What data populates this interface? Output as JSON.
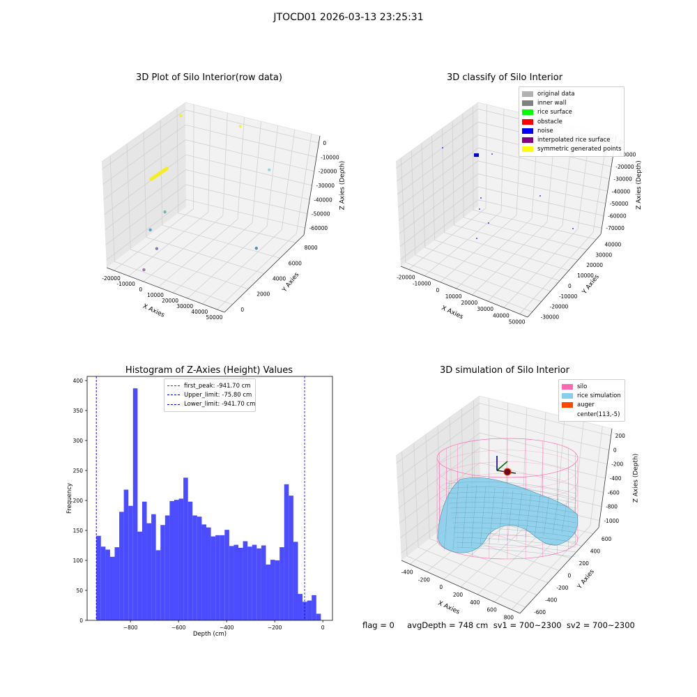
{
  "suptitle": "JTOCD01 2026-03-13 23:25:31",
  "colors": {
    "pane": "#f2f2f2",
    "pane_side": "#e6e6e6",
    "grid": "#d0d0d0",
    "hist_bar": "#4b4bff",
    "first_peak": "#ff0000",
    "limit": "#0000ff",
    "silo": "#ff69b4",
    "rice": "#87ceeb",
    "auger": "#ff4500"
  },
  "panel_tl": {
    "title": "3D Plot of Silo Interior(row data)",
    "xlabel": "X Axies",
    "ylabel": "Y Axies",
    "zlabel": "Z Axies (Depth)",
    "xticks": [
      "-20000",
      "-10000",
      "0",
      "10000",
      "20000",
      "30000",
      "40000",
      "50000"
    ],
    "yticks": [
      "0",
      "2000",
      "4000",
      "6000",
      "8000"
    ],
    "zticks": [
      "0",
      "-10000",
      "-20000",
      "-30000",
      "-40000",
      "-50000",
      "-60000"
    ]
  },
  "panel_tr": {
    "title": "3D classify of Silo Interior",
    "xlabel": "X Axies",
    "ylabel": "Y Axies",
    "zlabel": "Z Axies (Depth)",
    "xticks": [
      "-20000",
      "-10000",
      "0",
      "10000",
      "20000",
      "30000",
      "40000",
      "50000"
    ],
    "yticks": [
      "-30000",
      "-20000",
      "-10000",
      "0",
      "10000",
      "20000",
      "30000",
      "40000"
    ],
    "zticks": [
      "0",
      "-10000",
      "-20000",
      "-30000",
      "-40000",
      "-50000",
      "-60000",
      "-70000"
    ],
    "legend": [
      {
        "label": "original data",
        "color": "#b0b0b0"
      },
      {
        "label": "inner wall",
        "color": "#808080"
      },
      {
        "label": "rice surface",
        "color": "#00ff00"
      },
      {
        "label": "obstacle",
        "color": "#ff0000"
      },
      {
        "label": "noise",
        "color": "#0000ff"
      },
      {
        "label": "interpolated rice surface",
        "color": "#800080"
      },
      {
        "label": "symmetric generated points",
        "color": "#ffff00"
      }
    ]
  },
  "panel_br": {
    "title": "3D simulation of Silo Interior",
    "xlabel": "X Axies",
    "ylabel": "Y Axies",
    "zlabel": "Z Axies (Depth)",
    "xticks": [
      "-400",
      "-200",
      "0",
      "200",
      "400",
      "600",
      "800"
    ],
    "yticks": [
      "-600",
      "-400",
      "-200",
      "0",
      "200",
      "400",
      "600"
    ],
    "zticks": [
      "200",
      "0",
      "-200",
      "-400",
      "-600",
      "-800",
      "-1000"
    ],
    "legend": [
      {
        "label": "silo",
        "color": "#ff69b4"
      },
      {
        "label": "rice simulation",
        "color": "#87ceeb"
      },
      {
        "label": "auger",
        "color": "#ff4500"
      },
      {
        "label": "center(113,-5)",
        "color": ""
      }
    ]
  },
  "footer": "flag = 0     avgDepth = 748 cm  sv1 = 700~2300  sv2 = 700~2300",
  "chart_data": [
    {
      "type": "scatter",
      "title": "3D Plot of Silo Interior(row data)",
      "xlabel": "X Axies",
      "ylabel": "Y Axies",
      "zlabel": "Z Axies (Depth)",
      "xlim": [
        -25000,
        55000
      ],
      "ylim": [
        -1000,
        9000
      ],
      "zlim": [
        -70000,
        2000
      ],
      "points_note": "",
      "clusters": [
        {
          "x": -20000,
          "y": 8000,
          "z": -2000,
          "color": "#f0f020"
        },
        {
          "x": 15000,
          "y": 9000,
          "z": 0,
          "color": "#f0f020"
        },
        {
          "x": 45000,
          "y": 7000,
          "z": -10000,
          "color": "#88cccc"
        },
        {
          "x": 0,
          "y": 2000,
          "z": -35000,
          "color": "#5aaaaa"
        },
        {
          "x": -5000,
          "y": 1000,
          "z": -45000,
          "color": "#4090b0"
        },
        {
          "x": 0,
          "y": 800,
          "z": -55000,
          "color": "#6060b0"
        },
        {
          "x": 45000,
          "y": 5000,
          "z": -55000,
          "color": "#2a7aa0"
        },
        {
          "x": -5000,
          "y": 0,
          "z": -68000,
          "color": "#9050b0"
        }
      ]
    },
    {
      "type": "scatter",
      "title": "3D classify of Silo Interior",
      "xlim": [
        -25000,
        55000
      ],
      "ylim": [
        -35000,
        45000
      ],
      "zlim": [
        -75000,
        2000
      ]
    },
    {
      "type": "bar",
      "title": "Histogram of Z-Axies (Height) Values",
      "xlabel": "Depth (cm)",
      "ylabel": "Frequency",
      "xlim": [
        -980,
        40
      ],
      "ylim": [
        0,
        407
      ],
      "xticks": [
        -800,
        -600,
        -400,
        -200,
        0
      ],
      "yticks": [
        0,
        50,
        100,
        150,
        200,
        250,
        300,
        350,
        400
      ],
      "bin_start": -941.7,
      "bin_width": 19.05,
      "values": [
        141,
        123,
        118,
        106,
        122,
        181,
        218,
        191,
        387,
        148,
        198,
        162,
        177,
        117,
        159,
        175,
        199,
        201,
        203,
        238,
        198,
        175,
        173,
        160,
        155,
        140,
        142,
        142,
        151,
        124,
        126,
        121,
        132,
        123,
        126,
        120,
        125,
        93,
        101,
        100,
        122,
        227,
        208,
        131,
        44,
        31,
        33,
        42,
        11
      ],
      "lines": [
        {
          "label": "first_peak: -941.70 cm",
          "x": -941.7,
          "color": "#ff0000"
        },
        {
          "label": "Upper_limit: -75.80 cm",
          "x": -75.8,
          "color": "#0000ff"
        },
        {
          "label": "Lower_limit: -941.70 cm",
          "x": -941.7,
          "color": "#0000ff"
        }
      ]
    },
    {
      "type": "surface",
      "title": "3D simulation of Silo Interior",
      "xlim": [
        -500,
        850
      ],
      "ylim": [
        -700,
        700
      ],
      "zlim": [
        -1050,
        300
      ],
      "center": [
        113,
        -5
      ]
    }
  ]
}
